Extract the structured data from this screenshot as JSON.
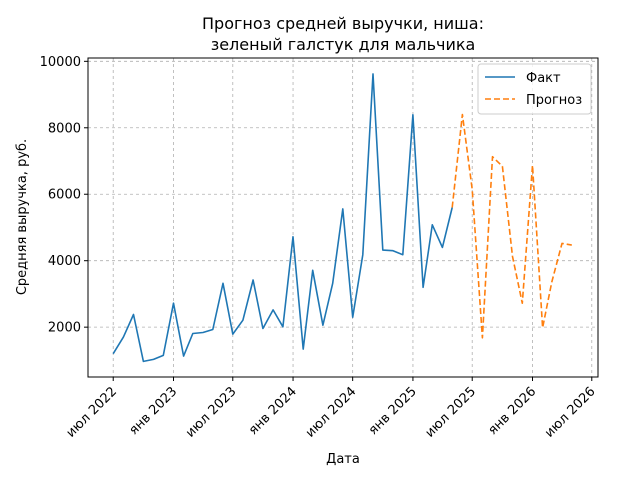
{
  "chart_data": {
    "type": "line",
    "title_line1": "Прогноз средней выручки, ниша:",
    "title_line2": "зеленый галстук для мальчика",
    "xlabel": "Дата",
    "ylabel": "Средняя выручка, руб.",
    "ylim": [
      500,
      10100
    ],
    "xlim": [
      "2022-04-15",
      "2026-07-20"
    ],
    "yticks": [
      2000,
      4000,
      6000,
      8000,
      10000
    ],
    "ytick_labels": [
      "2000",
      "4000",
      "6000",
      "8000",
      "10000"
    ],
    "xticks": [
      "2022-07-01",
      "2023-01-01",
      "2023-07-01",
      "2024-01-01",
      "2024-07-01",
      "2025-01-01",
      "2025-07-01",
      "2026-01-01",
      "2026-07-01"
    ],
    "xtick_labels": [
      "июл 2022",
      "янв 2023",
      "июл 2023",
      "янв 2024",
      "июл 2024",
      "янв 2025",
      "июл 2025",
      "янв 2026",
      "июл 2026"
    ],
    "grid": true,
    "legend_position": "top-right",
    "series": [
      {
        "name": "Факт",
        "color": "#1f77b4",
        "style": "solid",
        "points": [
          [
            "2022-07-01",
            1200
          ],
          [
            "2022-08-01",
            1700
          ],
          [
            "2022-09-01",
            2380
          ],
          [
            "2022-10-01",
            970
          ],
          [
            "2022-11-01",
            1030
          ],
          [
            "2022-12-01",
            1150
          ],
          [
            "2023-01-01",
            2720
          ],
          [
            "2023-02-01",
            1130
          ],
          [
            "2023-03-01",
            1810
          ],
          [
            "2023-04-01",
            1840
          ],
          [
            "2023-05-01",
            1930
          ],
          [
            "2023-06-01",
            3320
          ],
          [
            "2023-07-01",
            1790
          ],
          [
            "2023-08-01",
            2210
          ],
          [
            "2023-09-01",
            3420
          ],
          [
            "2023-10-01",
            1960
          ],
          [
            "2023-11-01",
            2520
          ],
          [
            "2023-12-01",
            2010
          ],
          [
            "2024-01-01",
            4720
          ],
          [
            "2024-02-01",
            1340
          ],
          [
            "2024-03-01",
            3710
          ],
          [
            "2024-04-01",
            2060
          ],
          [
            "2024-05-01",
            3320
          ],
          [
            "2024-06-01",
            5560
          ],
          [
            "2024-07-01",
            2300
          ],
          [
            "2024-08-01",
            4180
          ],
          [
            "2024-09-01",
            9620
          ],
          [
            "2024-10-01",
            4320
          ],
          [
            "2024-11-01",
            4300
          ],
          [
            "2024-12-01",
            4180
          ],
          [
            "2025-01-01",
            8390
          ],
          [
            "2025-02-01",
            3200
          ],
          [
            "2025-03-01",
            5080
          ],
          [
            "2025-04-01",
            4400
          ],
          [
            "2025-05-01",
            5600
          ]
        ]
      },
      {
        "name": "Прогноз",
        "color": "#ff7f0e",
        "style": "dashed",
        "points": [
          [
            "2025-05-01",
            5600
          ],
          [
            "2025-06-01",
            8400
          ],
          [
            "2025-07-01",
            6150
          ],
          [
            "2025-08-01",
            1680
          ],
          [
            "2025-09-01",
            7130
          ],
          [
            "2025-10-01",
            6840
          ],
          [
            "2025-11-01",
            4130
          ],
          [
            "2025-12-01",
            2720
          ],
          [
            "2026-01-01",
            6870
          ],
          [
            "2026-02-01",
            1980
          ],
          [
            "2026-03-01",
            3360
          ],
          [
            "2026-04-01",
            4520
          ],
          [
            "2026-05-01",
            4470
          ]
        ]
      }
    ]
  }
}
